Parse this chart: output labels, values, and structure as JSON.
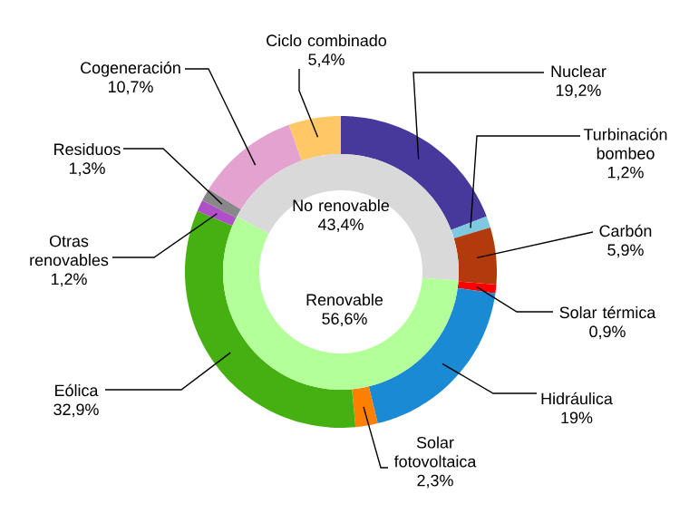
{
  "chart_data": [
    {
      "type": "donut",
      "categories": [
        "Nuclear",
        "Turbinación bombeo",
        "Carbón",
        "Solar térmica",
        "Hidráulica",
        "Solar fotovoltaica",
        "Eólica",
        "Otras renovables",
        "Residuos",
        "Cogeneración",
        "Ciclo combinado"
      ],
      "values": [
        19.2,
        1.2,
        5.9,
        0.9,
        19,
        2.3,
        32.9,
        1.2,
        1.3,
        10.7,
        5.4
      ],
      "colors": [
        "#46399b",
        "#7fc8e0",
        "#b33a0c",
        "#ff0000",
        "#1a8ad4",
        "#ff8000",
        "#44b012",
        "#b050c8",
        "#888888",
        "#e4a2d0",
        "#ffc766"
      ],
      "value_labels": [
        "19,2%",
        "1,2%",
        "5,9%",
        "0,9%",
        "19%",
        "2,3%",
        "32,9%",
        "1,2%",
        "1,3%",
        "10,7%",
        "5,4%"
      ]
    },
    {
      "type": "donut",
      "categories": [
        "No renovable",
        "Renovable"
      ],
      "values": [
        43.4,
        56.6
      ],
      "colors": [
        "#d9d9d9",
        "#b3ff99"
      ],
      "value_labels": [
        "43,4%",
        "56,6%"
      ]
    }
  ]
}
